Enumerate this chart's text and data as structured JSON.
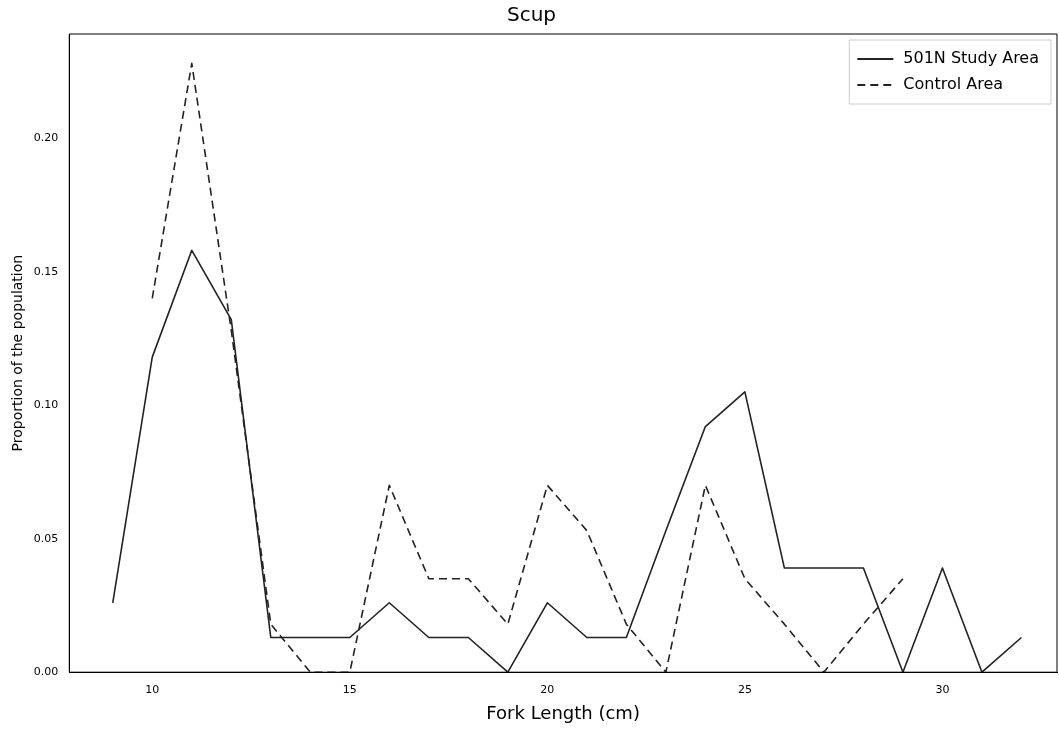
{
  "chart_data": {
    "type": "line",
    "title": "Scup",
    "xlabel": "Fork Length (cm)",
    "ylabel": "Proportion of the population",
    "xlim": [
      7.9,
      32.9
    ],
    "ylim": [
      0,
      0.239
    ],
    "xticks": [
      10,
      15,
      20,
      25,
      30
    ],
    "yticks": [
      {
        "value": 0,
        "label": "0.00"
      },
      {
        "value": 0.05,
        "label": "0.05"
      },
      {
        "value": 0.1,
        "label": "0.10"
      },
      {
        "value": 0.15,
        "label": "0.15"
      },
      {
        "value": 0.2,
        "label": "0.20"
      }
    ],
    "grid": false,
    "legend": "top right",
    "marker": "none",
    "series": [
      {
        "name": "501N Study Area",
        "color": "#222222",
        "line_style": "solid",
        "x": [
          9,
          10,
          11,
          12,
          13,
          14,
          15,
          16,
          17,
          18,
          19,
          20,
          21,
          22,
          23,
          24,
          25,
          26,
          27,
          28,
          29,
          30,
          31,
          32
        ],
        "values": [
          0.026,
          0.118,
          0.158,
          0.132,
          0.013,
          0.013,
          0.013,
          0.026,
          0.013,
          0.013,
          0,
          0.026,
          0.013,
          0.013,
          0.053,
          0.092,
          0.105,
          0.039,
          0.039,
          0.039,
          0,
          0.039,
          0,
          0.013
        ]
      },
      {
        "name": "Control Area",
        "color": "#222222",
        "line_style": "dashed",
        "x": [
          10,
          11,
          12,
          13,
          14,
          15,
          16,
          17,
          18,
          19,
          20,
          21,
          22,
          23,
          24,
          25,
          26,
          27,
          28,
          29
        ],
        "values": [
          0.14,
          0.228,
          0.128,
          0.018,
          0,
          0,
          0.07,
          0.035,
          0.035,
          0.018,
          0.07,
          0.053,
          0.018,
          0,
          0.07,
          0.035,
          0.018,
          0,
          0.018,
          0.035
        ]
      }
    ]
  }
}
